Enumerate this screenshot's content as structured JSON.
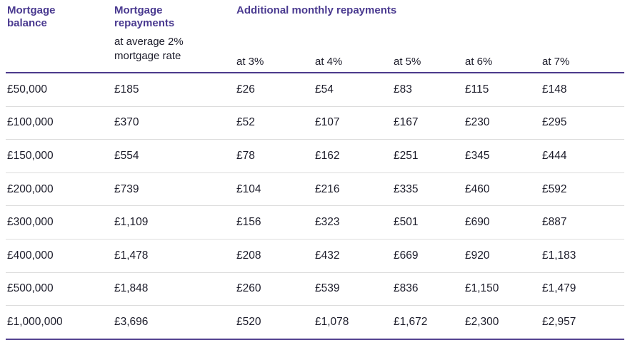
{
  "header": {
    "col_balance": "Mortgage balance",
    "col_repayments": "Mortgage repayments",
    "col_repayments_sub": "at average 2% mortgage rate",
    "col_additional": "Additional monthly repayments",
    "rates": [
      "at 3%",
      "at 4%",
      "at 5%",
      "at 6%",
      "at 7%"
    ]
  },
  "rows": [
    {
      "balance": "£50,000",
      "repayment": "£185",
      "additional": [
        "£26",
        "£54",
        "£83",
        "£115",
        "£148"
      ]
    },
    {
      "balance": "£100,000",
      "repayment": "£370",
      "additional": [
        "£52",
        "£107",
        "£167",
        "£230",
        "£295"
      ]
    },
    {
      "balance": "£150,000",
      "repayment": "£554",
      "additional": [
        "£78",
        "£162",
        "£251",
        "£345",
        "£444"
      ]
    },
    {
      "balance": "£200,000",
      "repayment": "£739",
      "additional": [
        "£104",
        "£216",
        "£335",
        "£460",
        "£592"
      ]
    },
    {
      "balance": "£300,000",
      "repayment": "£1,109",
      "additional": [
        "£156",
        "£323",
        "£501",
        "£690",
        "£887"
      ]
    },
    {
      "balance": "£400,000",
      "repayment": "£1,478",
      "additional": [
        "£208",
        "£432",
        "£669",
        "£920",
        "£1,183"
      ]
    },
    {
      "balance": "£500,000",
      "repayment": "£1,848",
      "additional": [
        "£260",
        "£539",
        "£836",
        "£1,150",
        "£1,479"
      ]
    },
    {
      "balance": "£1,000,000",
      "repayment": "£3,696",
      "additional": [
        "£520",
        "£1,078",
        "£1,672",
        "£2,300",
        "£2,957"
      ]
    }
  ],
  "colors": {
    "header_text": "#4a3a90",
    "rule": "#4c3a8c",
    "row_divider": "#dcdcdc",
    "body_text": "#1c1c2a"
  }
}
